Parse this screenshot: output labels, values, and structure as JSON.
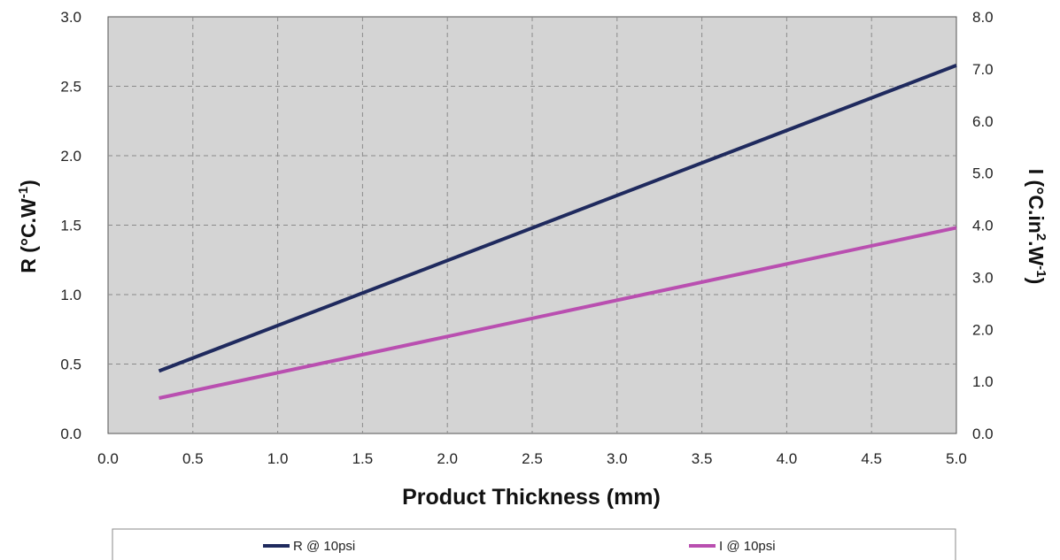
{
  "chart_data": {
    "type": "line",
    "xlabel": "Product Thickness (mm)",
    "ylabel_left": {
      "main": "R (°C.W",
      "sup": "-1",
      "end": ")"
    },
    "ylabel_right": {
      "main": "I (°C.in",
      "sup1": "2",
      "mid": ".W",
      "sup2": "-1",
      "end": ")"
    },
    "xlim": [
      0.0,
      5.0
    ],
    "ylim_left": [
      0.0,
      3.0
    ],
    "ylim_right": [
      0.0,
      8.0
    ],
    "x_ticks": [
      "0.0",
      "0.5",
      "1.0",
      "1.5",
      "2.0",
      "2.5",
      "3.0",
      "3.5",
      "4.0",
      "4.5",
      "5.0"
    ],
    "y_left_ticks": [
      "0.0",
      "0.5",
      "1.0",
      "1.5",
      "2.0",
      "2.5",
      "3.0"
    ],
    "y_right_ticks": [
      "0.0",
      "1.0",
      "2.0",
      "3.0",
      "4.0",
      "5.0",
      "6.0",
      "7.0",
      "8.0"
    ],
    "grid": true,
    "legend_position": "bottom",
    "series": [
      {
        "name": "R @ 10psi",
        "axis": "left",
        "color": "#1f2a5e",
        "x": [
          0.3,
          5.0
        ],
        "y": [
          0.45,
          2.65
        ]
      },
      {
        "name": "I @ 10psi",
        "axis": "right",
        "color": "#b94fb0",
        "x": [
          0.3,
          5.0
        ],
        "y": [
          0.68,
          3.95
        ]
      }
    ],
    "colors": {
      "plot_background": "#d4d4d4",
      "grid": "#8a8a8a"
    }
  }
}
